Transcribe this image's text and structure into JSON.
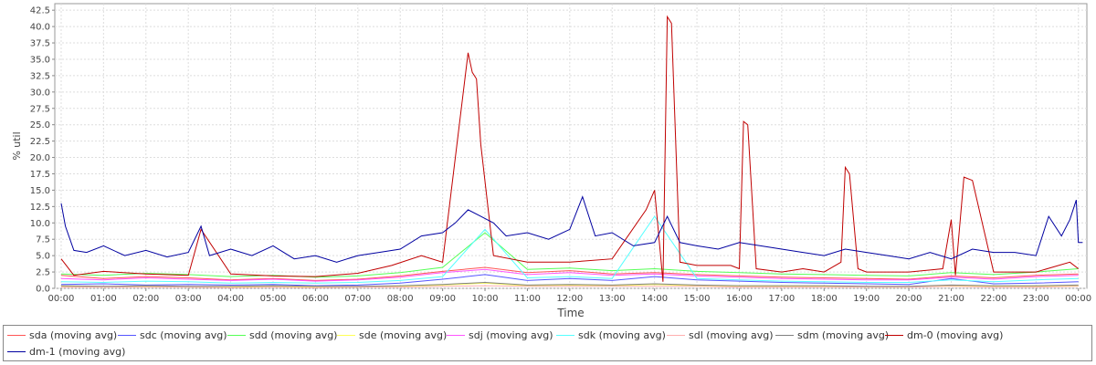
{
  "chart_data": {
    "type": "line",
    "title": "",
    "xlabel": "Time",
    "ylabel": "% util",
    "ylim": [
      0,
      43.5
    ],
    "xlim": [
      -0.15,
      24.2
    ],
    "grid": true,
    "legend_position": "bottom",
    "y_ticks": [
      "0.0",
      "2.5",
      "5.0",
      "7.5",
      "10.0",
      "12.5",
      "15.0",
      "17.5",
      "20.0",
      "22.5",
      "25.0",
      "27.5",
      "30.0",
      "32.5",
      "35.0",
      "37.5",
      "40.0",
      "42.5"
    ],
    "x_ticks": [
      "00:00",
      "01:00",
      "02:00",
      "03:00",
      "04:00",
      "05:00",
      "06:00",
      "07:00",
      "08:00",
      "09:00",
      "10:00",
      "11:00",
      "12:00",
      "13:00",
      "14:00",
      "15:00",
      "16:00",
      "17:00",
      "18:00",
      "19:00",
      "20:00",
      "21:00",
      "22:00",
      "23:00",
      "00:00"
    ],
    "series": [
      {
        "name": "sda (moving avg)",
        "color": "#ff5555",
        "x": [
          0,
          1,
          2,
          3,
          4,
          5,
          6,
          7,
          8,
          9,
          10,
          11,
          12,
          13,
          14,
          15,
          16,
          17,
          18,
          19,
          20,
          21,
          22,
          23,
          24
        ],
        "y": [
          2.0,
          1.5,
          1.8,
          1.6,
          1.3,
          1.5,
          1.2,
          1.4,
          1.9,
          2.6,
          3.2,
          2.4,
          2.7,
          2.2,
          2.4,
          2.1,
          1.9,
          1.7,
          1.6,
          1.5,
          1.4,
          1.9,
          1.6,
          2.0,
          2.2
        ]
      },
      {
        "name": "sdc (moving avg)",
        "color": "#5555ff",
        "x": [
          0,
          1,
          2,
          3,
          4,
          5,
          6,
          7,
          8,
          9,
          10,
          11,
          12,
          13,
          14,
          15,
          16,
          17,
          18,
          19,
          20,
          21,
          22,
          23,
          24
        ],
        "y": [
          0.6,
          0.7,
          0.5,
          0.6,
          0.5,
          0.6,
          0.4,
          0.5,
          0.8,
          1.4,
          2.1,
          1.2,
          1.5,
          1.2,
          1.8,
          1.3,
          1.1,
          0.9,
          0.8,
          0.7,
          0.6,
          1.5,
          0.7,
          0.8,
          1.0
        ]
      },
      {
        "name": "sdd (moving avg)",
        "color": "#55ff55",
        "x": [
          0,
          1,
          2,
          3,
          4,
          5,
          6,
          7,
          8,
          9,
          10,
          11,
          12,
          13,
          14,
          15,
          16,
          17,
          18,
          19,
          20,
          21,
          22,
          23,
          24
        ],
        "y": [
          2.2,
          2.0,
          2.3,
          2.1,
          1.8,
          2.0,
          1.7,
          1.9,
          2.4,
          3.2,
          8.5,
          2.9,
          3.1,
          2.7,
          3.0,
          2.6,
          2.4,
          2.2,
          2.1,
          2.0,
          1.9,
          2.4,
          2.1,
          2.5,
          3.0
        ]
      },
      {
        "name": "sde (moving avg)",
        "color": "#ffff55",
        "x": [
          0,
          1,
          2,
          3,
          4,
          5,
          6,
          7,
          8,
          9,
          10,
          11,
          12,
          13,
          14,
          15,
          16,
          17,
          18,
          19,
          20,
          21,
          22,
          23,
          24
        ],
        "y": [
          0.3,
          0.2,
          0.3,
          0.2,
          0.2,
          0.3,
          0.2,
          0.2,
          0.3,
          0.5,
          0.8,
          0.4,
          0.5,
          0.4,
          0.6,
          0.4,
          0.3,
          0.3,
          0.3,
          0.2,
          0.2,
          0.4,
          0.3,
          0.3,
          0.4
        ]
      },
      {
        "name": "sdj (moving avg)",
        "color": "#ff55ff",
        "x": [
          0,
          1,
          2,
          3,
          4,
          5,
          6,
          7,
          8,
          9,
          10,
          11,
          12,
          13,
          14,
          15,
          16,
          17,
          18,
          19,
          20,
          21,
          22,
          23,
          24
        ],
        "y": [
          1.5,
          1.3,
          1.6,
          1.4,
          1.2,
          1.4,
          1.1,
          1.3,
          1.7,
          2.4,
          2.9,
          2.1,
          2.4,
          2.0,
          2.2,
          1.9,
          1.7,
          1.5,
          1.4,
          1.3,
          1.3,
          1.7,
          1.4,
          1.8,
          2.0
        ]
      },
      {
        "name": "sdk (moving avg)",
        "color": "#55ffff",
        "x": [
          0,
          1,
          2,
          3,
          4,
          5,
          6,
          7,
          8,
          9,
          10,
          11,
          12,
          13,
          14,
          15,
          16,
          17,
          18,
          19,
          20,
          21,
          22,
          23,
          24
        ],
        "y": [
          1.0,
          0.9,
          1.1,
          1.0,
          0.8,
          0.9,
          0.8,
          0.9,
          1.2,
          1.8,
          9.0,
          1.6,
          1.8,
          1.5,
          11.0,
          1.5,
          1.3,
          1.1,
          1.0,
          0.9,
          0.9,
          1.3,
          1.0,
          1.3,
          1.5
        ]
      },
      {
        "name": "sdl (moving avg)",
        "color": "#ffafaf",
        "x": [
          0,
          1,
          2,
          3,
          4,
          5,
          6,
          7,
          8,
          9,
          10,
          11,
          12,
          13,
          14,
          15,
          16,
          17,
          18,
          19,
          20,
          21,
          22,
          23,
          24
        ],
        "y": [
          0.2,
          0.2,
          0.2,
          0.2,
          0.1,
          0.2,
          0.1,
          0.2,
          0.2,
          0.3,
          0.4,
          0.3,
          0.3,
          0.3,
          0.3,
          0.3,
          0.2,
          0.2,
          0.2,
          0.2,
          0.2,
          0.3,
          0.2,
          0.2,
          0.3
        ]
      },
      {
        "name": "sdm (moving avg)",
        "color": "#808080",
        "x": [
          0,
          1,
          2,
          3,
          4,
          5,
          6,
          7,
          8,
          9,
          10,
          11,
          12,
          13,
          14,
          15,
          16,
          17,
          18,
          19,
          20,
          21,
          22,
          23,
          24
        ],
        "y": [
          0.4,
          0.3,
          0.4,
          0.3,
          0.3,
          0.4,
          0.3,
          0.3,
          0.4,
          0.6,
          0.9,
          0.5,
          0.6,
          0.5,
          0.7,
          0.5,
          0.4,
          0.4,
          0.4,
          0.3,
          0.3,
          0.5,
          0.4,
          0.4,
          0.5
        ]
      },
      {
        "name": "dm-0 (moving avg)",
        "color": "#c00000",
        "x": [
          0,
          0.3,
          1,
          2,
          3,
          3.3,
          4,
          5,
          6,
          7,
          7.8,
          8.5,
          9.0,
          9.6,
          9.7,
          9.8,
          9.9,
          10.2,
          11,
          12,
          13,
          13.8,
          14.0,
          14.2,
          14.3,
          14.4,
          14.6,
          15,
          15.8,
          16.0,
          16.1,
          16.2,
          16.4,
          17,
          17.5,
          18.0,
          18.4,
          18.5,
          18.6,
          18.8,
          19,
          20,
          20.8,
          21.0,
          21.1,
          21.3,
          21.5,
          22,
          23,
          23.8,
          24
        ],
        "y": [
          4.5,
          2.0,
          2.6,
          2.2,
          2.0,
          9.0,
          2.2,
          1.9,
          1.8,
          2.3,
          3.5,
          5.0,
          4.0,
          36.0,
          33.0,
          32.0,
          22.0,
          5.0,
          4.0,
          4.0,
          4.5,
          12.0,
          15.0,
          1.0,
          41.5,
          40.5,
          4.0,
          3.5,
          3.5,
          3.0,
          25.5,
          25.0,
          3.0,
          2.5,
          3.0,
          2.5,
          4.0,
          18.5,
          17.5,
          3.0,
          2.5,
          2.5,
          3.0,
          10.5,
          2.0,
          17.0,
          16.5,
          2.5,
          2.5,
          4.0,
          3.0
        ]
      },
      {
        "name": "dm-1 (moving avg)",
        "color": "#0000a0",
        "x": [
          0,
          0.1,
          0.3,
          0.6,
          1,
          1.5,
          2,
          2.5,
          3,
          3.3,
          3.5,
          4,
          4.5,
          5,
          5.5,
          6,
          6.5,
          7,
          7.5,
          8,
          8.5,
          9,
          9.3,
          9.6,
          9.9,
          10.2,
          10.5,
          11,
          11.5,
          12,
          12.3,
          12.6,
          13,
          13.5,
          14,
          14.3,
          14.6,
          15,
          15.5,
          16,
          16.5,
          17,
          17.5,
          18,
          18.5,
          19,
          19.5,
          20,
          20.5,
          21,
          21.5,
          22,
          22.5,
          23,
          23.3,
          23.6,
          23.8,
          23.95,
          24,
          24.1
        ],
        "y": [
          13.0,
          9.5,
          5.8,
          5.5,
          6.5,
          5.0,
          5.8,
          4.8,
          5.5,
          9.5,
          5.0,
          6.0,
          5.0,
          6.5,
          4.5,
          5.0,
          4.0,
          5.0,
          5.5,
          6.0,
          8.0,
          8.5,
          10.0,
          12.0,
          11.0,
          10.0,
          8.0,
          8.5,
          7.5,
          9.0,
          14.0,
          8.0,
          8.5,
          6.5,
          7.0,
          11.0,
          7.0,
          6.5,
          6.0,
          7.0,
          6.5,
          6.0,
          5.5,
          5.0,
          6.0,
          5.5,
          5.0,
          4.5,
          5.5,
          4.5,
          6.0,
          5.5,
          5.5,
          5.0,
          11.0,
          8.0,
          10.5,
          13.5,
          7.0,
          7.0
        ]
      }
    ]
  }
}
